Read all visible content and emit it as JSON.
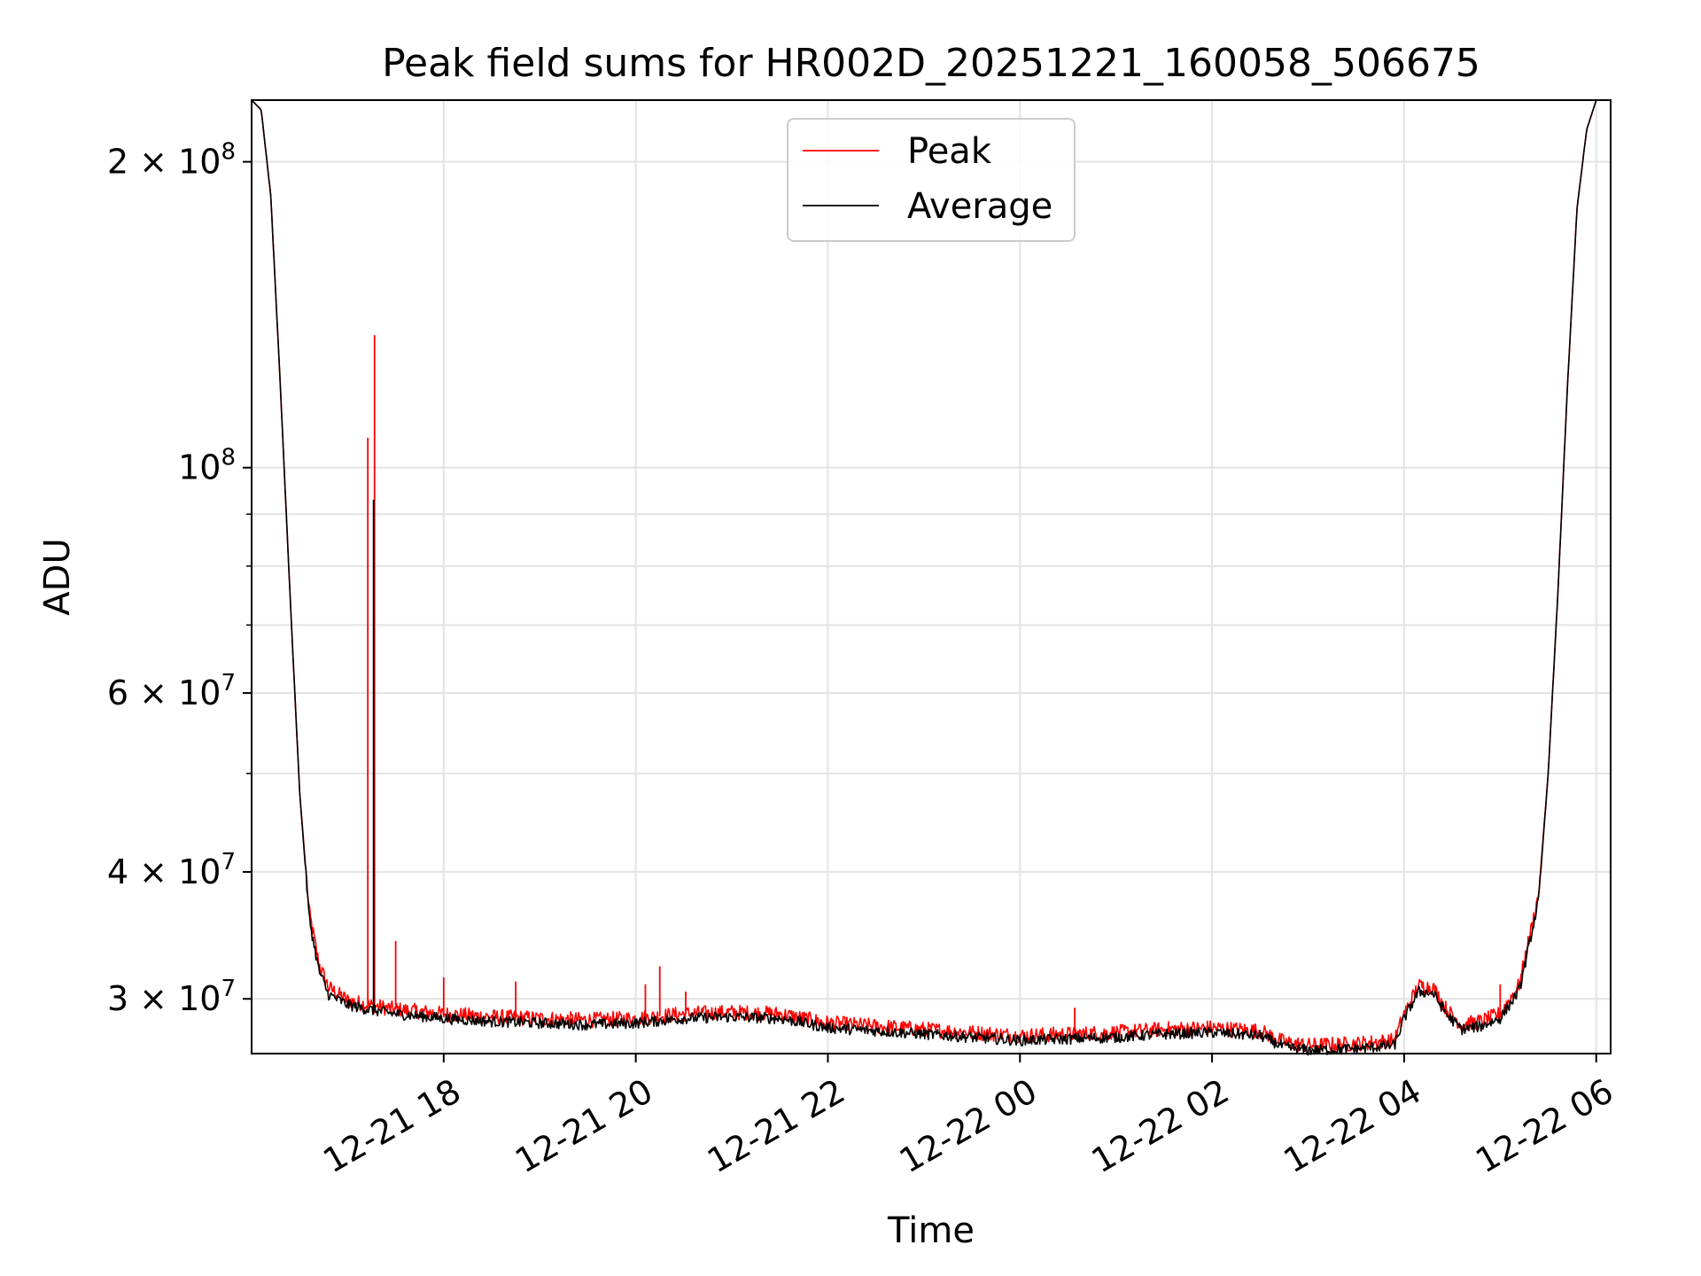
{
  "chart_data": {
    "type": "line",
    "title": "Peak field sums for HR002D_20251221_160058_506675",
    "xlabel": "Time",
    "ylabel": "ADU",
    "yscale": "log",
    "grid": true,
    "legend_position": "top-center",
    "x_unit": "hours since 2025-12-21 16:00",
    "xlim": [
      16.0,
      30.15
    ],
    "ylim": [
      26500000,
      230000000
    ],
    "x_ticks": [
      {
        "value": 18,
        "label": "12-21 18"
      },
      {
        "value": 20,
        "label": "12-21 20"
      },
      {
        "value": 22,
        "label": "12-21 22"
      },
      {
        "value": 24,
        "label": "12-22 00"
      },
      {
        "value": 26,
        "label": "12-22 02"
      },
      {
        "value": 28,
        "label": "12-22 04"
      },
      {
        "value": 30,
        "label": "12-22 06"
      }
    ],
    "y_ticks": [
      {
        "value": 30000000,
        "mant": "3",
        "exp": "7"
      },
      {
        "value": 40000000,
        "mant": "4",
        "exp": "7"
      },
      {
        "value": 60000000,
        "mant": "6",
        "exp": "7"
      },
      {
        "value": 100000000,
        "mant": "",
        "exp": "8"
      },
      {
        "value": 200000000,
        "mant": "2",
        "exp": "8"
      }
    ],
    "y_minor_ticks": [
      50000000,
      70000000,
      80000000,
      90000000
    ],
    "series": [
      {
        "name": "Peak",
        "color": "#ff0000",
        "x": [
          16.0,
          16.1,
          16.2,
          16.3,
          16.4,
          16.5,
          16.6,
          16.7,
          16.8,
          17.0,
          17.2,
          17.5,
          18.0,
          18.5,
          19.0,
          19.5,
          20.0,
          20.5,
          21.0,
          21.5,
          22.0,
          22.5,
          23.0,
          23.5,
          24.0,
          24.5,
          25.0,
          25.5,
          26.0,
          26.5,
          26.75,
          27.0,
          27.5,
          27.9,
          28.0,
          28.15,
          28.3,
          28.45,
          28.6,
          28.8,
          29.0,
          29.2,
          29.4,
          29.5,
          29.6,
          29.7,
          29.8,
          29.9,
          30.0,
          30.15
        ],
        "y": [
          230000000,
          225000000,
          185000000,
          120000000,
          75000000,
          48000000,
          36500000,
          32500000,
          30800000,
          29900000,
          29600000,
          29300000,
          29000000,
          28800000,
          28700000,
          28600000,
          28700000,
          29000000,
          29100000,
          29000000,
          28400000,
          28200000,
          28000000,
          27800000,
          27600000,
          27700000,
          27800000,
          28000000,
          28100000,
          27900000,
          27200000,
          27000000,
          27100000,
          27300000,
          29000000,
          30900000,
          30800000,
          29200000,
          28300000,
          28500000,
          29000000,
          31000000,
          38000000,
          50000000,
          75000000,
          120000000,
          180000000,
          215000000,
          230000000,
          230000000
        ]
      },
      {
        "name": "Average",
        "color": "#000000",
        "x": [
          16.0,
          16.1,
          16.2,
          16.3,
          16.4,
          16.5,
          16.6,
          16.7,
          16.8,
          17.0,
          17.2,
          17.5,
          18.0,
          18.5,
          19.0,
          19.5,
          20.0,
          20.5,
          21.0,
          21.5,
          22.0,
          22.5,
          23.0,
          23.5,
          24.0,
          24.5,
          25.0,
          25.5,
          26.0,
          26.5,
          26.75,
          27.0,
          27.5,
          27.9,
          28.0,
          28.15,
          28.3,
          28.45,
          28.6,
          28.8,
          29.0,
          29.2,
          29.4,
          29.5,
          29.6,
          29.7,
          29.8,
          29.9,
          30.0,
          30.15
        ],
        "y": [
          230000000,
          225000000,
          185000000,
          120000000,
          75000000,
          48000000,
          36000000,
          32000000,
          30300000,
          29600000,
          29300000,
          29000000,
          28700000,
          28500000,
          28400000,
          28300000,
          28400000,
          28700000,
          28800000,
          28700000,
          28100000,
          27900000,
          27700000,
          27500000,
          27300000,
          27400000,
          27500000,
          27700000,
          27800000,
          27600000,
          26900000,
          26700000,
          26800000,
          27000000,
          28700000,
          30500000,
          30400000,
          28900000,
          28000000,
          28200000,
          28700000,
          30600000,
          37500000,
          50000000,
          75000000,
          120000000,
          180000000,
          215000000,
          230000000,
          230000000
        ]
      }
    ],
    "spikes": [
      {
        "series": "Peak",
        "x": 17.21,
        "y": 107000000
      },
      {
        "series": "Peak",
        "x": 17.28,
        "y": 135000000
      },
      {
        "series": "Average",
        "x": 17.27,
        "y": 93000000
      },
      {
        "series": "Peak",
        "x": 17.5,
        "y": 34200000
      },
      {
        "series": "Peak",
        "x": 18.0,
        "y": 31500000
      },
      {
        "series": "Peak",
        "x": 18.75,
        "y": 31200000
      },
      {
        "series": "Peak",
        "x": 20.1,
        "y": 31000000
      },
      {
        "series": "Peak",
        "x": 20.25,
        "y": 32300000
      },
      {
        "series": "Peak",
        "x": 20.52,
        "y": 30500000
      },
      {
        "series": "Peak",
        "x": 24.57,
        "y": 29400000
      },
      {
        "series": "Peak",
        "x": 29.0,
        "y": 31000000
      }
    ]
  }
}
